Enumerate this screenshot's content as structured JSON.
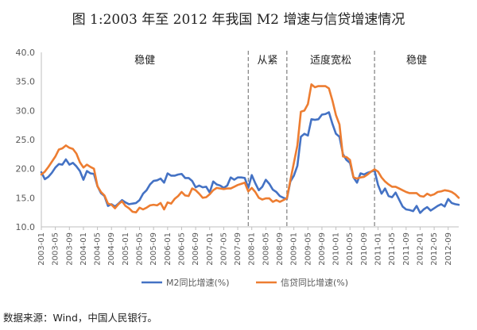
{
  "title": "图 1:2003 年至 2012 年我国 M2 增速与信贷增速情况",
  "source": "数据来源：Wind，中国人民银行。",
  "colors": {
    "m2": "#4472c4",
    "credit": "#ed7d31",
    "axis": "#bfbfbf",
    "divider": "#7f7f7f",
    "text": "#595959"
  },
  "chart_data": {
    "type": "line",
    "title": "图 1:2003 年至 2012 年我国 M2 增速与信贷增速情况",
    "xlabel": "",
    "ylabel": "",
    "ylim": [
      10,
      40
    ],
    "yticks": [
      "10.0",
      "15.0",
      "20.0",
      "25.0",
      "30.0",
      "35.0",
      "40.0"
    ],
    "xticks": [
      "2003-01",
      "2003-05",
      "2003-09",
      "2004-01",
      "2004-05",
      "2004-09",
      "2005-01",
      "2005-05",
      "2005-09",
      "2006-01",
      "2006-05",
      "2006-09",
      "2007-01",
      "2007-05",
      "2007-09",
      "2008-01",
      "2008-05",
      "2008-09",
      "2009-01",
      "2009-05",
      "2009-09",
      "2010-01",
      "2010-05",
      "2010-09",
      "2011-01",
      "2011-05",
      "2011-09",
      "2012-01",
      "2012-05",
      "2012-09"
    ],
    "legend_position": "bottom",
    "grid": false,
    "regions": [
      {
        "label": "稳健",
        "start": "2003-01",
        "end": "2007-12"
      },
      {
        "label": "从紧",
        "start": "2007-12",
        "end": "2008-11"
      },
      {
        "label": "适度宽松",
        "start": "2008-11",
        "end": "2010-12"
      },
      {
        "label": "稳健",
        "start": "2010-12",
        "end": "2012-12"
      }
    ],
    "dividers": [
      "2007-12",
      "2008-11",
      "2010-12"
    ],
    "series": [
      {
        "name": "M2同比增速(%)",
        "points": [
          [
            "2003-01",
            19.4
          ],
          [
            "2003-02",
            18.2
          ],
          [
            "2003-03",
            18.6
          ],
          [
            "2003-04",
            19.3
          ],
          [
            "2003-05",
            20.2
          ],
          [
            "2003-06",
            20.8
          ],
          [
            "2003-07",
            20.7
          ],
          [
            "2003-08",
            21.6
          ],
          [
            "2003-09",
            20.7
          ],
          [
            "2003-10",
            21.0
          ],
          [
            "2003-11",
            20.4
          ],
          [
            "2003-12",
            19.6
          ],
          [
            "2004-01",
            18.1
          ],
          [
            "2004-02",
            19.6
          ],
          [
            "2004-03",
            19.2
          ],
          [
            "2004-04",
            19.1
          ],
          [
            "2004-05",
            17.0
          ],
          [
            "2004-06",
            15.8
          ],
          [
            "2004-07",
            15.3
          ],
          [
            "2004-08",
            13.6
          ],
          [
            "2004-09",
            13.9
          ],
          [
            "2004-10",
            13.5
          ],
          [
            "2004-11",
            14.0
          ],
          [
            "2004-12",
            14.6
          ],
          [
            "2005-01",
            14.2
          ],
          [
            "2005-02",
            13.9
          ],
          [
            "2005-03",
            14.0
          ],
          [
            "2005-04",
            14.1
          ],
          [
            "2005-05",
            14.6
          ],
          [
            "2005-06",
            15.7
          ],
          [
            "2005-07",
            16.3
          ],
          [
            "2005-08",
            17.3
          ],
          [
            "2005-09",
            17.9
          ],
          [
            "2005-10",
            18.0
          ],
          [
            "2005-11",
            18.3
          ],
          [
            "2005-12",
            17.6
          ],
          [
            "2006-01",
            19.2
          ],
          [
            "2006-02",
            18.8
          ],
          [
            "2006-03",
            18.8
          ],
          [
            "2006-04",
            19.0
          ],
          [
            "2006-05",
            19.1
          ],
          [
            "2006-06",
            18.4
          ],
          [
            "2006-07",
            18.4
          ],
          [
            "2006-08",
            17.9
          ],
          [
            "2006-09",
            16.8
          ],
          [
            "2006-10",
            17.1
          ],
          [
            "2006-11",
            16.8
          ],
          [
            "2006-12",
            16.9
          ],
          [
            "2007-01",
            15.9
          ],
          [
            "2007-02",
            17.8
          ],
          [
            "2007-03",
            17.3
          ],
          [
            "2007-04",
            17.1
          ],
          [
            "2007-05",
            16.7
          ],
          [
            "2007-06",
            17.1
          ],
          [
            "2007-07",
            18.5
          ],
          [
            "2007-08",
            18.1
          ],
          [
            "2007-09",
            18.5
          ],
          [
            "2007-10",
            18.5
          ],
          [
            "2007-11",
            18.4
          ],
          [
            "2007-12",
            16.7
          ],
          [
            "2008-01",
            18.9
          ],
          [
            "2008-02",
            17.5
          ],
          [
            "2008-03",
            16.3
          ],
          [
            "2008-04",
            16.9
          ],
          [
            "2008-05",
            18.1
          ],
          [
            "2008-06",
            17.4
          ],
          [
            "2008-07",
            16.4
          ],
          [
            "2008-08",
            16.0
          ],
          [
            "2008-09",
            15.3
          ],
          [
            "2008-10",
            15.0
          ],
          [
            "2008-11",
            14.8
          ],
          [
            "2008-12",
            17.8
          ],
          [
            "2009-01",
            18.8
          ],
          [
            "2009-02",
            20.5
          ],
          [
            "2009-03",
            25.5
          ],
          [
            "2009-04",
            26.0
          ],
          [
            "2009-05",
            25.7
          ],
          [
            "2009-06",
            28.5
          ],
          [
            "2009-07",
            28.4
          ],
          [
            "2009-08",
            28.5
          ],
          [
            "2009-09",
            29.3
          ],
          [
            "2009-10",
            29.4
          ],
          [
            "2009-11",
            29.7
          ],
          [
            "2009-12",
            27.7
          ],
          [
            "2010-01",
            26.0
          ],
          [
            "2010-02",
            25.5
          ],
          [
            "2010-03",
            22.5
          ],
          [
            "2010-04",
            21.5
          ],
          [
            "2010-05",
            21.0
          ],
          [
            "2010-06",
            18.5
          ],
          [
            "2010-07",
            17.6
          ],
          [
            "2010-08",
            19.2
          ],
          [
            "2010-09",
            19.0
          ],
          [
            "2010-10",
            19.3
          ],
          [
            "2010-11",
            19.5
          ],
          [
            "2010-12",
            19.7
          ],
          [
            "2011-01",
            17.2
          ],
          [
            "2011-02",
            15.7
          ],
          [
            "2011-03",
            16.6
          ],
          [
            "2011-04",
            15.3
          ],
          [
            "2011-05",
            15.1
          ],
          [
            "2011-06",
            15.9
          ],
          [
            "2011-07",
            14.7
          ],
          [
            "2011-08",
            13.5
          ],
          [
            "2011-09",
            13.0
          ],
          [
            "2011-10",
            12.9
          ],
          [
            "2011-11",
            12.7
          ],
          [
            "2011-12",
            13.6
          ],
          [
            "2012-01",
            12.4
          ],
          [
            "2012-02",
            13.0
          ],
          [
            "2012-03",
            13.4
          ],
          [
            "2012-04",
            12.8
          ],
          [
            "2012-05",
            13.2
          ],
          [
            "2012-06",
            13.6
          ],
          [
            "2012-07",
            13.9
          ],
          [
            "2012-08",
            13.5
          ],
          [
            "2012-09",
            14.8
          ],
          [
            "2012-10",
            14.1
          ],
          [
            "2012-11",
            13.9
          ],
          [
            "2012-12",
            13.8
          ]
        ]
      },
      {
        "name": "信贷同比增速(%)",
        "points": [
          [
            "2003-01",
            19.0
          ],
          [
            "2003-02",
            19.5
          ],
          [
            "2003-03",
            20.3
          ],
          [
            "2003-04",
            21.2
          ],
          [
            "2003-05",
            22.1
          ],
          [
            "2003-06",
            23.3
          ],
          [
            "2003-07",
            23.5
          ],
          [
            "2003-08",
            24.0
          ],
          [
            "2003-09",
            23.6
          ],
          [
            "2003-10",
            23.4
          ],
          [
            "2003-11",
            22.6
          ],
          [
            "2003-12",
            21.1
          ],
          [
            "2004-01",
            20.2
          ],
          [
            "2004-02",
            20.7
          ],
          [
            "2004-03",
            20.3
          ],
          [
            "2004-04",
            20.0
          ],
          [
            "2004-05",
            17.0
          ],
          [
            "2004-06",
            16.0
          ],
          [
            "2004-07",
            15.4
          ],
          [
            "2004-08",
            14.0
          ],
          [
            "2004-09",
            13.8
          ],
          [
            "2004-10",
            13.2
          ],
          [
            "2004-11",
            13.9
          ],
          [
            "2004-12",
            14.4
          ],
          [
            "2005-01",
            13.6
          ],
          [
            "2005-02",
            13.2
          ],
          [
            "2005-03",
            12.6
          ],
          [
            "2005-04",
            12.5
          ],
          [
            "2005-05",
            13.3
          ],
          [
            "2005-06",
            13.0
          ],
          [
            "2005-07",
            13.3
          ],
          [
            "2005-08",
            13.7
          ],
          [
            "2005-09",
            13.8
          ],
          [
            "2005-10",
            13.7
          ],
          [
            "2005-11",
            14.1
          ],
          [
            "2005-12",
            13.0
          ],
          [
            "2006-01",
            14.2
          ],
          [
            "2006-02",
            14.0
          ],
          [
            "2006-03",
            14.8
          ],
          [
            "2006-04",
            15.3
          ],
          [
            "2006-05",
            16.0
          ],
          [
            "2006-06",
            15.4
          ],
          [
            "2006-07",
            15.3
          ],
          [
            "2006-08",
            16.6
          ],
          [
            "2006-09",
            16.3
          ],
          [
            "2006-10",
            15.7
          ],
          [
            "2006-11",
            15.0
          ],
          [
            "2006-12",
            15.1
          ],
          [
            "2007-01",
            15.6
          ],
          [
            "2007-02",
            16.3
          ],
          [
            "2007-03",
            16.7
          ],
          [
            "2007-04",
            16.6
          ],
          [
            "2007-05",
            16.5
          ],
          [
            "2007-06",
            16.6
          ],
          [
            "2007-07",
            16.6
          ],
          [
            "2007-08",
            16.9
          ],
          [
            "2007-09",
            17.2
          ],
          [
            "2007-10",
            17.4
          ],
          [
            "2007-11",
            17.6
          ],
          [
            "2007-12",
            16.1
          ],
          [
            "2008-01",
            16.7
          ],
          [
            "2008-02",
            16.0
          ],
          [
            "2008-03",
            15.0
          ],
          [
            "2008-04",
            14.7
          ],
          [
            "2008-05",
            14.9
          ],
          [
            "2008-06",
            14.9
          ],
          [
            "2008-07",
            14.3
          ],
          [
            "2008-08",
            14.6
          ],
          [
            "2008-09",
            14.3
          ],
          [
            "2008-10",
            14.6
          ],
          [
            "2008-11",
            14.9
          ],
          [
            "2008-12",
            18.0
          ],
          [
            "2009-01",
            21.0
          ],
          [
            "2009-02",
            24.0
          ],
          [
            "2009-03",
            29.8
          ],
          [
            "2009-04",
            30.0
          ],
          [
            "2009-05",
            31.1
          ],
          [
            "2009-06",
            34.5
          ],
          [
            "2009-07",
            34.0
          ],
          [
            "2009-08",
            34.2
          ],
          [
            "2009-09",
            34.2
          ],
          [
            "2009-10",
            34.2
          ],
          [
            "2009-11",
            33.8
          ],
          [
            "2009-12",
            31.7
          ],
          [
            "2010-01",
            29.2
          ],
          [
            "2010-02",
            27.6
          ],
          [
            "2010-03",
            22.1
          ],
          [
            "2010-04",
            22.0
          ],
          [
            "2010-05",
            21.5
          ],
          [
            "2010-06",
            18.5
          ],
          [
            "2010-07",
            18.3
          ],
          [
            "2010-08",
            18.5
          ],
          [
            "2010-09",
            18.6
          ],
          [
            "2010-10",
            19.0
          ],
          [
            "2010-11",
            19.5
          ],
          [
            "2010-12",
            19.9
          ],
          [
            "2011-01",
            19.5
          ],
          [
            "2011-02",
            18.5
          ],
          [
            "2011-03",
            17.8
          ],
          [
            "2011-04",
            17.3
          ],
          [
            "2011-05",
            16.9
          ],
          [
            "2011-06",
            16.9
          ],
          [
            "2011-07",
            16.6
          ],
          [
            "2011-08",
            16.3
          ],
          [
            "2011-09",
            16.0
          ],
          [
            "2011-10",
            15.8
          ],
          [
            "2011-11",
            15.8
          ],
          [
            "2011-12",
            15.8
          ],
          [
            "2012-01",
            15.3
          ],
          [
            "2012-02",
            15.2
          ],
          [
            "2012-03",
            15.7
          ],
          [
            "2012-04",
            15.4
          ],
          [
            "2012-05",
            15.6
          ],
          [
            "2012-06",
            16.0
          ],
          [
            "2012-07",
            16.1
          ],
          [
            "2012-08",
            16.3
          ],
          [
            "2012-09",
            16.2
          ],
          [
            "2012-10",
            16.0
          ],
          [
            "2012-11",
            15.6
          ],
          [
            "2012-12",
            15.0
          ]
        ]
      }
    ]
  }
}
